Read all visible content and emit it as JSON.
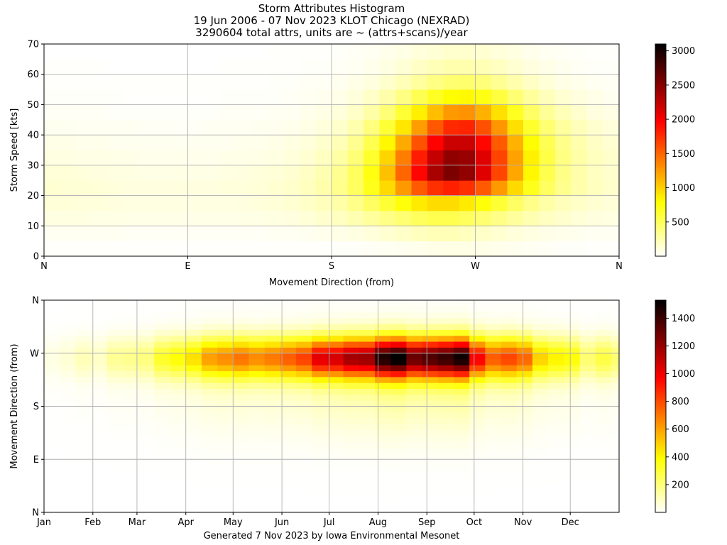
{
  "title": {
    "line1": "Storm Attributes Histogram",
    "line2": "19 Jun 2006 - 07 Nov 2023 KLOT Chicago (NEXRAD)",
    "line3": "3290604 total attrs, units are ~ (attrs+scans)/year"
  },
  "footer": "Generated 7 Nov 2023 by Iowa Environmental Mesonet",
  "chart_data": [
    {
      "type": "heatmap",
      "name": "speed-direction",
      "xlabel": "Movement Direction (from)",
      "ylabel": "Storm Speed [kts]",
      "xlim": [
        0,
        360
      ],
      "ylim": [
        0,
        70
      ],
      "xticks": [
        0,
        90,
        180,
        270,
        360
      ],
      "xtick_labels": [
        "N",
        "E",
        "S",
        "W",
        "N"
      ],
      "yticks": [
        0,
        10,
        20,
        30,
        40,
        50,
        60,
        70
      ],
      "grid": true,
      "colormap": "hot_r",
      "colorbar": {
        "min": 0,
        "max": 3100,
        "ticks": [
          500,
          1000,
          1500,
          2000,
          2500,
          3000
        ]
      },
      "x_bins": {
        "start": 0,
        "width": 10,
        "count": 36
      },
      "y_bins": {
        "start": 0,
        "width": 5,
        "count": 14
      },
      "values": [
        [
          10,
          10,
          10,
          10,
          10,
          10,
          10,
          10,
          10,
          10,
          10,
          10,
          10,
          10,
          10,
          10,
          10,
          10,
          20,
          20,
          30,
          40,
          50,
          60,
          70,
          80,
          80,
          70,
          60,
          50,
          40,
          30,
          20,
          20,
          10,
          10
        ],
        [
          40,
          40,
          40,
          40,
          40,
          30,
          30,
          30,
          30,
          30,
          30,
          30,
          30,
          30,
          40,
          40,
          50,
          60,
          70,
          90,
          110,
          140,
          170,
          200,
          220,
          220,
          200,
          170,
          140,
          110,
          90,
          70,
          60,
          50,
          40,
          40
        ],
        [
          90,
          90,
          90,
          80,
          80,
          70,
          70,
          70,
          70,
          70,
          70,
          70,
          80,
          80,
          90,
          100,
          120,
          150,
          190,
          240,
          300,
          370,
          440,
          500,
          540,
          540,
          500,
          440,
          370,
          300,
          240,
          190,
          150,
          120,
          100,
          90
        ],
        [
          120,
          120,
          110,
          110,
          100,
          90,
          90,
          90,
          90,
          90,
          90,
          90,
          100,
          110,
          120,
          140,
          170,
          210,
          270,
          360,
          480,
          620,
          760,
          880,
          950,
          950,
          880,
          760,
          620,
          480,
          360,
          270,
          210,
          170,
          140,
          120
        ],
        [
          140,
          130,
          130,
          120,
          110,
          100,
          100,
          100,
          100,
          100,
          100,
          110,
          110,
          120,
          140,
          160,
          200,
          260,
          350,
          490,
          700,
          960,
          1260,
          1550,
          1750,
          1820,
          1750,
          1550,
          1260,
          960,
          700,
          490,
          350,
          260,
          200,
          160
        ],
        [
          120,
          120,
          110,
          100,
          90,
          90,
          80,
          80,
          80,
          80,
          80,
          90,
          100,
          110,
          120,
          140,
          180,
          240,
          340,
          490,
          740,
          1080,
          1500,
          1950,
          2350,
          2550,
          2450,
          2100,
          1650,
          1200,
          820,
          550,
          370,
          260,
          190,
          150
        ],
        [
          90,
          90,
          80,
          80,
          70,
          70,
          60,
          60,
          60,
          60,
          60,
          70,
          70,
          80,
          90,
          110,
          140,
          190,
          280,
          420,
          650,
          980,
          1390,
          1840,
          2230,
          2460,
          2420,
          2100,
          1660,
          1220,
          850,
          570,
          390,
          270,
          200,
          160
        ],
        [
          70,
          70,
          60,
          60,
          50,
          50,
          50,
          50,
          50,
          50,
          50,
          50,
          60,
          60,
          70,
          90,
          110,
          150,
          220,
          340,
          540,
          820,
          1180,
          1590,
          1960,
          2200,
          2200,
          1940,
          1550,
          1140,
          790,
          530,
          360,
          250,
          180,
          140
        ],
        [
          50,
          50,
          40,
          40,
          40,
          40,
          30,
          30,
          30,
          30,
          40,
          40,
          40,
          50,
          50,
          60,
          80,
          110,
          160,
          250,
          400,
          620,
          900,
          1240,
          1560,
          1780,
          1800,
          1600,
          1280,
          940,
          650,
          440,
          300,
          210,
          150,
          110
        ],
        [
          30,
          30,
          30,
          30,
          20,
          20,
          20,
          20,
          20,
          20,
          20,
          30,
          30,
          30,
          40,
          40,
          60,
          80,
          110,
          170,
          270,
          420,
          620,
          860,
          1090,
          1260,
          1290,
          1150,
          930,
          690,
          480,
          320,
          220,
          150,
          100,
          80
        ],
        [
          20,
          20,
          20,
          20,
          20,
          10,
          10,
          10,
          10,
          10,
          10,
          20,
          20,
          20,
          20,
          30,
          40,
          50,
          70,
          110,
          170,
          260,
          380,
          530,
          680,
          790,
          810,
          730,
          590,
          440,
          310,
          210,
          140,
          100,
          70,
          50
        ],
        [
          10,
          10,
          10,
          10,
          10,
          10,
          10,
          10,
          10,
          10,
          10,
          10,
          10,
          10,
          20,
          20,
          30,
          30,
          50,
          70,
          100,
          150,
          220,
          300,
          380,
          440,
          450,
          410,
          330,
          250,
          180,
          120,
          80,
          60,
          40,
          30
        ],
        [
          10,
          10,
          10,
          10,
          0,
          0,
          0,
          0,
          0,
          0,
          0,
          10,
          10,
          10,
          10,
          10,
          20,
          20,
          30,
          40,
          60,
          90,
          130,
          180,
          220,
          250,
          250,
          230,
          190,
          140,
          100,
          70,
          50,
          30,
          20,
          20
        ],
        [
          0,
          0,
          0,
          0,
          0,
          0,
          0,
          0,
          0,
          0,
          0,
          0,
          0,
          0,
          10,
          10,
          10,
          10,
          20,
          30,
          40,
          60,
          80,
          110,
          130,
          150,
          150,
          140,
          110,
          90,
          60,
          40,
          30,
          20,
          10,
          10
        ]
      ]
    },
    {
      "type": "heatmap",
      "name": "direction-dayofyear",
      "xlabel": "",
      "ylabel": "Movement Direction (from)",
      "xlim": [
        1,
        366
      ],
      "ylim": [
        0,
        360
      ],
      "xticks": [
        1,
        32,
        60,
        91,
        121,
        152,
        182,
        213,
        244,
        274,
        305,
        335
      ],
      "xtick_labels": [
        "Jan",
        "Feb",
        "Mar",
        "Apr",
        "May",
        "Jun",
        "Jul",
        "Aug",
        "Sep",
        "Oct",
        "Nov",
        "Dec"
      ],
      "yticks": [
        0,
        90,
        180,
        270,
        360
      ],
      "ytick_labels": [
        "N",
        "E",
        "S",
        "W",
        "N"
      ],
      "grid": true,
      "colormap": "hot_r",
      "colorbar": {
        "min": 0,
        "max": 1530,
        "ticks": [
          200,
          400,
          600,
          800,
          1000,
          1200,
          1400
        ]
      },
      "x_bins": {
        "start": 1,
        "width": 10,
        "count": 37
      },
      "y_bins": {
        "start": 0,
        "width": 10,
        "count": 36
      },
      "profile": [
        40,
        60,
        100,
        80,
        150,
        160,
        180,
        300,
        350,
        420,
        560,
        600,
        650,
        600,
        640,
        700,
        760,
        950,
        980,
        1080,
        1100,
        1350,
        1420,
        1200,
        1250,
        1300,
        1380,
        900,
        700,
        750,
        680,
        450,
        380,
        350,
        200,
        260,
        200
      ]
    }
  ]
}
